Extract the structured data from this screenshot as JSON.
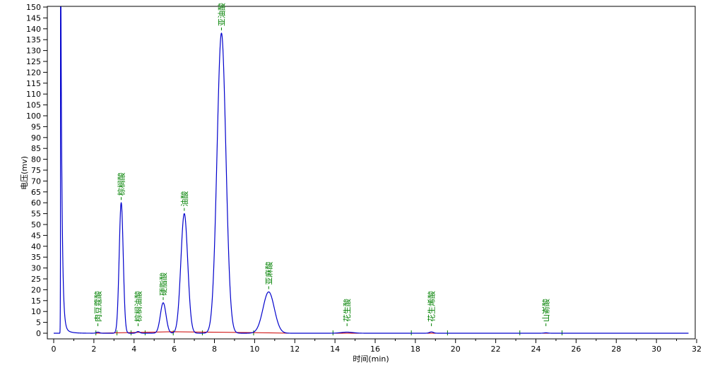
{
  "chart_data": {
    "type": "line",
    "title": "",
    "xlabel": "时间(min)",
    "ylabel": "电压(mv)",
    "xlim": [
      0,
      32
    ],
    "ylim": [
      0,
      150
    ],
    "x_ticks": [
      "0",
      "2",
      "4",
      "6",
      "8",
      "10",
      "12",
      "14",
      "16",
      "18",
      "20",
      "22",
      "24",
      "26",
      "28",
      "30",
      "32"
    ],
    "y_ticks": [
      "0",
      "5",
      "10",
      "15",
      "20",
      "25",
      "30",
      "35",
      "40",
      "45",
      "50",
      "55",
      "60",
      "65",
      "70",
      "75",
      "80",
      "85",
      "90",
      "95",
      "100",
      "105",
      "110",
      "115",
      "120",
      "125",
      "130",
      "135",
      "140",
      "145",
      "150"
    ],
    "grid": false,
    "colors": {
      "trace": "#0000cc",
      "baseline": "#cc0000",
      "peak_label": "#008000",
      "marker": "#008000"
    },
    "trace_range": [
      0,
      31.6
    ],
    "solvent_peak": {
      "rt": 0.36,
      "height": 150,
      "width": 0.05
    },
    "peaks": [
      {
        "name": "肉豆蔻酸",
        "rt": 2.2,
        "height": 0.5,
        "width": 0.08
      },
      {
        "name": "棕榈酸",
        "rt": 3.36,
        "height": 60,
        "width": 0.1
      },
      {
        "name": "棕榈油酸",
        "rt": 4.2,
        "height": 0.8,
        "width": 0.08
      },
      {
        "name": "硬脂酸",
        "rt": 5.45,
        "height": 14,
        "width": 0.14
      },
      {
        "name": "油酸",
        "rt": 6.5,
        "height": 55,
        "width": 0.17
      },
      {
        "name": "亚油酸",
        "rt": 8.35,
        "height": 138,
        "width": 0.22
      },
      {
        "name": "亚麻酸",
        "rt": 10.7,
        "height": 19,
        "width": 0.28
      },
      {
        "name": "花生酸",
        "rt": 14.6,
        "height": 0.5,
        "width": 0.3
      },
      {
        "name": "花生烯酸",
        "rt": 18.8,
        "height": 0.6,
        "width": 0.1
      },
      {
        "name": "山嵛酸",
        "rt": 24.5,
        "height": 0.2,
        "width": 0.1
      }
    ],
    "integration_marks": [
      2.1,
      3.15,
      3.85,
      4.55,
      5.95,
      7.4,
      9.95,
      13.9,
      17.8,
      19.6,
      23.2,
      25.3
    ]
  }
}
